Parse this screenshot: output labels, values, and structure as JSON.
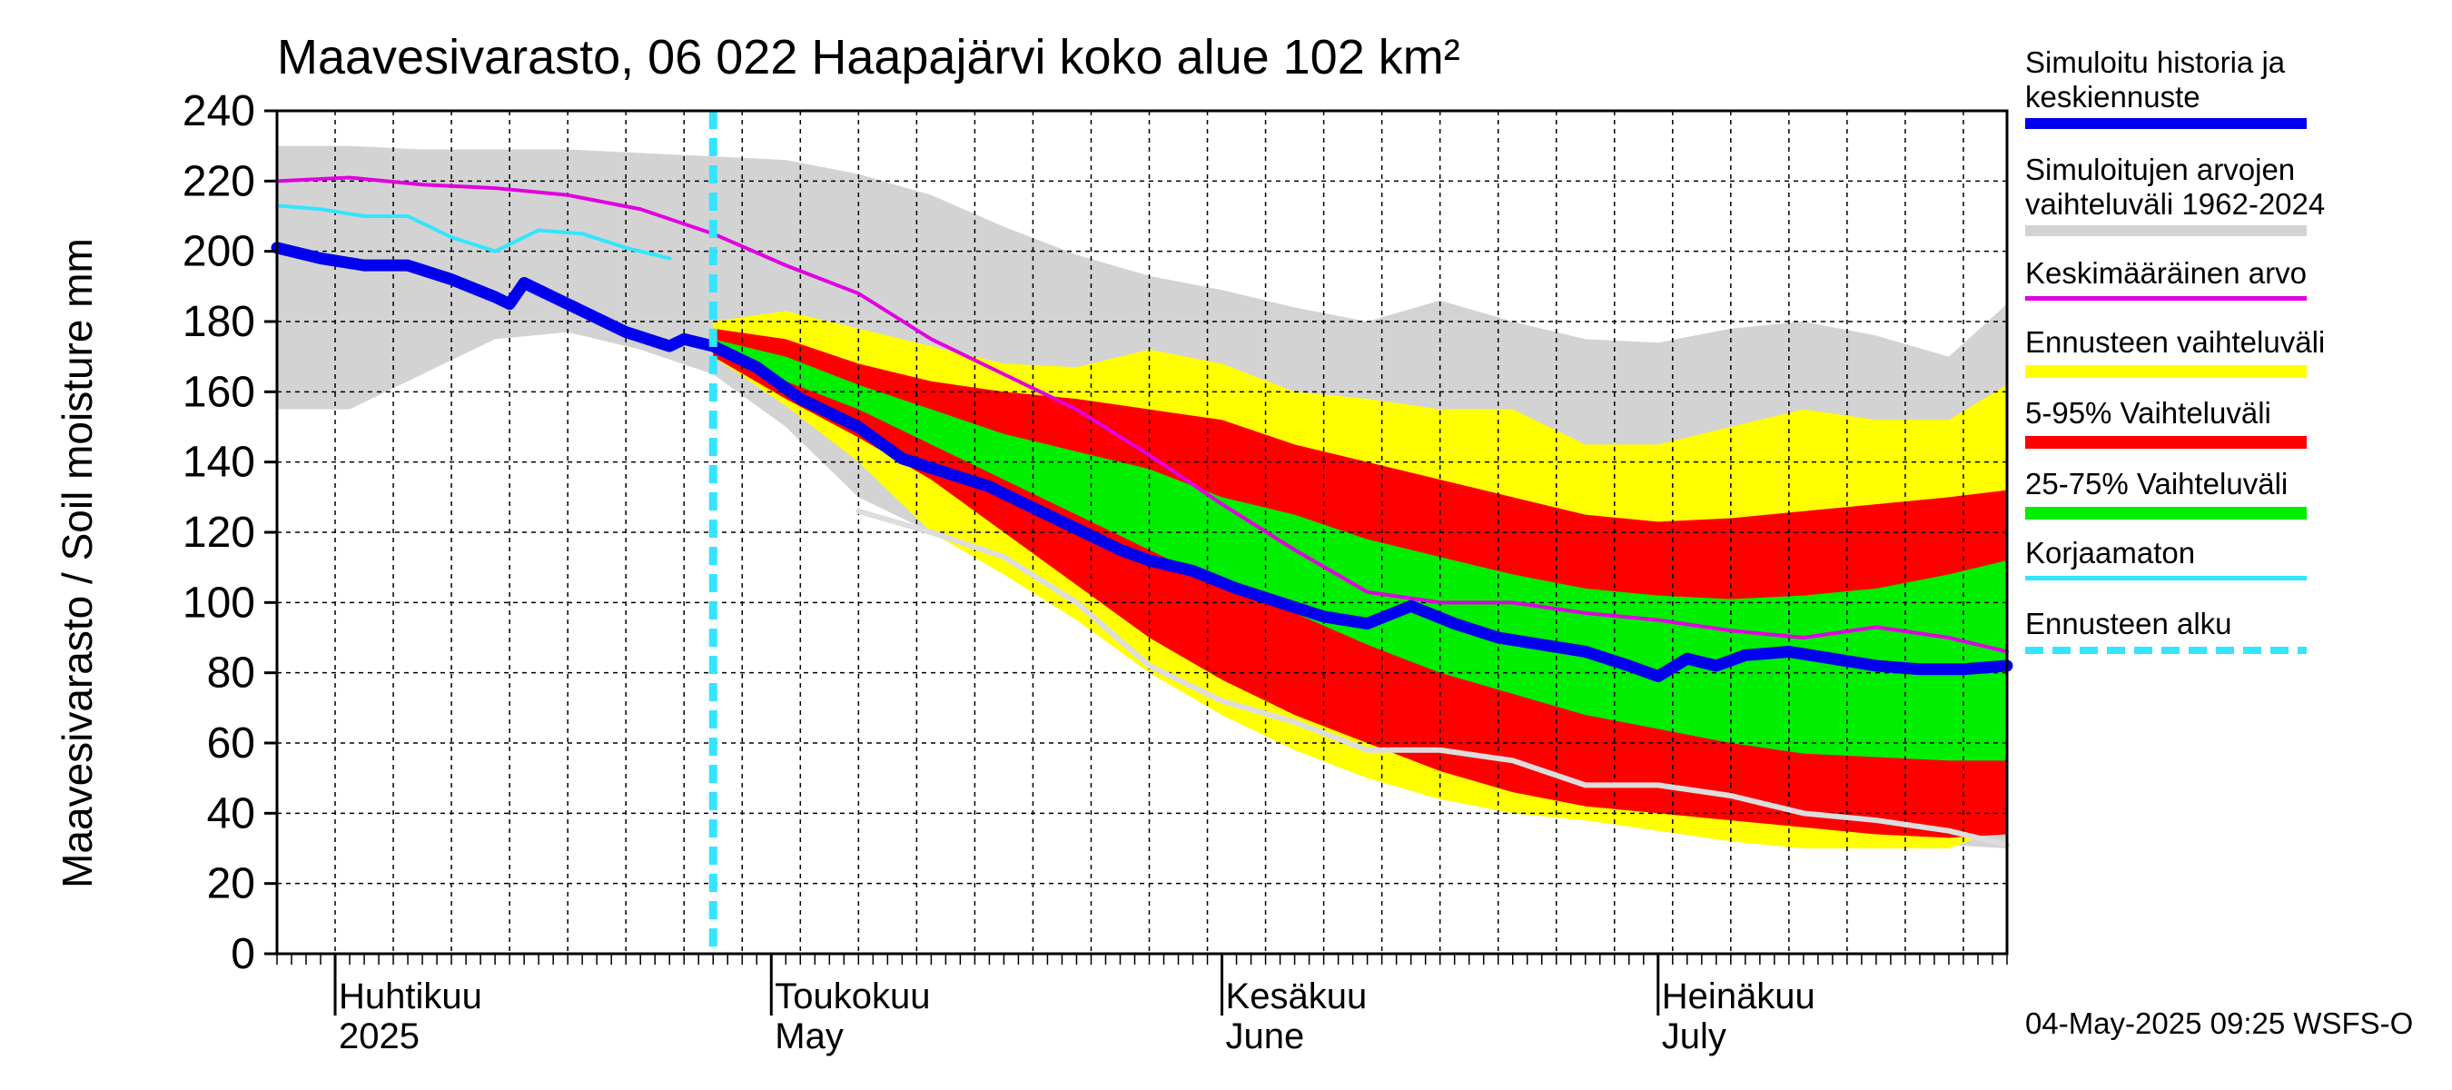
{
  "title": "Maavesivarasto, 06 022 Haapajärvi koko alue 102 km²",
  "footer": "04-May-2025 09:25 WSFS-O",
  "colors": {
    "history_band": "#d3d3d3",
    "forecast_full": "#ffff00",
    "forecast_5_95": "#ff0000",
    "forecast_25_75": "#00ee00",
    "median": "#0000ee",
    "mean": "#e000e0",
    "uncorrected": "#33e5ff",
    "forecast_start": "#33e5ff",
    "lowest_history": "#dddddd"
  },
  "legend": [
    {
      "label": "Simuloitu historia ja\nkeskiennuste",
      "color": "#0000ee",
      "style": "thick"
    },
    {
      "label": "Simuloitujen arvojen\nvaihteluväli 1962-2024",
      "color": "#d3d3d3",
      "style": "band"
    },
    {
      "label": "Keskimääräinen arvo",
      "color": "#e000e0",
      "style": "thin"
    },
    {
      "label": "Ennusteen vaihteluväli",
      "color": "#ffff00",
      "style": "band"
    },
    {
      "label": "5-95% Vaihteluväli",
      "color": "#ff0000",
      "style": "band"
    },
    {
      "label": "25-75% Vaihteluväli",
      "color": "#00ee00",
      "style": "band"
    },
    {
      "label": "Korjaamaton",
      "color": "#33e5ff",
      "style": "thin"
    },
    {
      "label": "Ennusteen alku",
      "color": "#33e5ff",
      "style": "dashed"
    }
  ],
  "chart_data": {
    "type": "area",
    "title": "Maavesivarasto, 06 022 Haapajärvi koko alue 102 km²",
    "ylabel": "Maavesivarasto / Soil moisture   mm",
    "xlabel": "",
    "ylim": [
      0,
      240
    ],
    "yticks": [
      0,
      20,
      40,
      60,
      80,
      100,
      120,
      140,
      160,
      180,
      200,
      220,
      240
    ],
    "xlim_days": [
      0,
      119
    ],
    "x_start_date": "2025-03-28",
    "forecast_start_day": 30,
    "months": [
      {
        "day": 4,
        "label1": "Huhtikuu",
        "label2": "2025"
      },
      {
        "day": 34,
        "label1": "Toukokuu",
        "label2": "May"
      },
      {
        "day": 65,
        "label1": "Kesäkuu",
        "label2": "June"
      },
      {
        "day": 95,
        "label1": "Heinäkuu",
        "label2": "July"
      }
    ],
    "series": [
      {
        "name": "Simuloitujen arvojen vaihteluväli 1962-2024",
        "kind": "band",
        "x": [
          0,
          5,
          10,
          15,
          20,
          25,
          30,
          35,
          40,
          45,
          50,
          55,
          60,
          65,
          70,
          75,
          80,
          85,
          90,
          95,
          100,
          105,
          110,
          115,
          119
        ],
        "upper": [
          230,
          230,
          229,
          229,
          229,
          228,
          227,
          226,
          222,
          216,
          207,
          199,
          193,
          189,
          184,
          180,
          186,
          180,
          175,
          174,
          178,
          180,
          176,
          170,
          185
        ],
        "lower": [
          155,
          155,
          165,
          175,
          177,
          172,
          165,
          150,
          130,
          120,
          110,
          100,
          88,
          76,
          68,
          60,
          54,
          46,
          42,
          40,
          36,
          34,
          32,
          31,
          30
        ]
      },
      {
        "name": "Ennusteen vaihteluväli",
        "kind": "band",
        "x": [
          30,
          35,
          40,
          45,
          50,
          55,
          60,
          65,
          70,
          75,
          80,
          85,
          90,
          95,
          100,
          105,
          110,
          115,
          119
        ],
        "upper": [
          180,
          183,
          178,
          173,
          168,
          167,
          172,
          168,
          160,
          158,
          155,
          155,
          145,
          145,
          150,
          155,
          152,
          152,
          162
        ],
        "lower": [
          170,
          156,
          140,
          120,
          108,
          95,
          80,
          68,
          58,
          50,
          44,
          40,
          38,
          35,
          32,
          30,
          30,
          30,
          36
        ]
      },
      {
        "name": "5-95% Vaihteluväli",
        "kind": "band",
        "x": [
          30,
          35,
          40,
          45,
          50,
          55,
          60,
          65,
          70,
          75,
          80,
          85,
          90,
          95,
          100,
          105,
          110,
          115,
          119
        ],
        "upper": [
          178,
          175,
          168,
          163,
          160,
          158,
          155,
          152,
          145,
          140,
          135,
          130,
          125,
          123,
          124,
          126,
          128,
          130,
          132
        ],
        "lower": [
          170,
          158,
          147,
          135,
          120,
          105,
          90,
          78,
          68,
          60,
          52,
          46,
          42,
          40,
          38,
          36,
          34,
          33,
          34
        ]
      },
      {
        "name": "25-75% Vaihteluväli",
        "kind": "band",
        "x": [
          30,
          35,
          40,
          45,
          50,
          55,
          60,
          65,
          70,
          75,
          80,
          85,
          90,
          95,
          100,
          105,
          110,
          115,
          119
        ],
        "upper": [
          175,
          170,
          162,
          155,
          148,
          143,
          138,
          130,
          125,
          118,
          113,
          108,
          104,
          102,
          101,
          102,
          104,
          108,
          112
        ],
        "lower": [
          172,
          163,
          155,
          145,
          135,
          125,
          115,
          105,
          97,
          88,
          80,
          74,
          68,
          64,
          60,
          57,
          56,
          55,
          55
        ]
      },
      {
        "name": "Keskimääräinen arvo",
        "kind": "line",
        "x": [
          0,
          5,
          10,
          15,
          20,
          25,
          30,
          35,
          40,
          45,
          50,
          55,
          60,
          65,
          70,
          75,
          80,
          85,
          90,
          95,
          100,
          105,
          110,
          115,
          119
        ],
        "values": [
          220,
          221,
          219,
          218,
          216,
          212,
          205,
          196,
          188,
          175,
          165,
          155,
          142,
          128,
          115,
          103,
          100,
          100,
          97,
          95,
          92,
          90,
          93,
          90,
          86
        ]
      },
      {
        "name": "Korjaamaton",
        "kind": "line",
        "x": [
          0,
          3,
          6,
          9,
          12,
          15,
          18,
          21,
          24,
          27
        ],
        "values": [
          213,
          212,
          210,
          210,
          204,
          200,
          206,
          205,
          201,
          198
        ]
      },
      {
        "name": "Alin simuloitu",
        "kind": "line",
        "x": [
          40,
          45,
          50,
          55,
          60,
          65,
          70,
          75,
          80,
          85,
          90,
          95,
          100,
          105,
          110,
          115,
          119
        ],
        "values": [
          126,
          120,
          113,
          100,
          82,
          72,
          66,
          58,
          58,
          55,
          48,
          48,
          45,
          40,
          38,
          35,
          31
        ]
      },
      {
        "name": "Simuloitu historia ja keskiennuste",
        "kind": "line",
        "x": [
          0,
          3,
          6,
          9,
          12,
          15,
          16,
          17,
          20,
          24,
          27,
          28,
          30,
          33,
          36,
          40,
          43,
          46,
          49,
          52,
          55,
          58,
          60,
          63,
          66,
          69,
          72,
          75,
          78,
          81,
          84,
          87,
          90,
          93,
          95,
          97,
          99,
          101,
          104,
          107,
          110,
          113,
          116,
          119
        ],
        "values": [
          201,
          198,
          196,
          196,
          192,
          187,
          185,
          191,
          185,
          177,
          173,
          175,
          173,
          167,
          158,
          150,
          141,
          137,
          133,
          127,
          121,
          115,
          112,
          109,
          104,
          100,
          96,
          94,
          99,
          94,
          90,
          88,
          86,
          82,
          79,
          84,
          82,
          85,
          86,
          84,
          82,
          81,
          81,
          82
        ]
      }
    ]
  }
}
